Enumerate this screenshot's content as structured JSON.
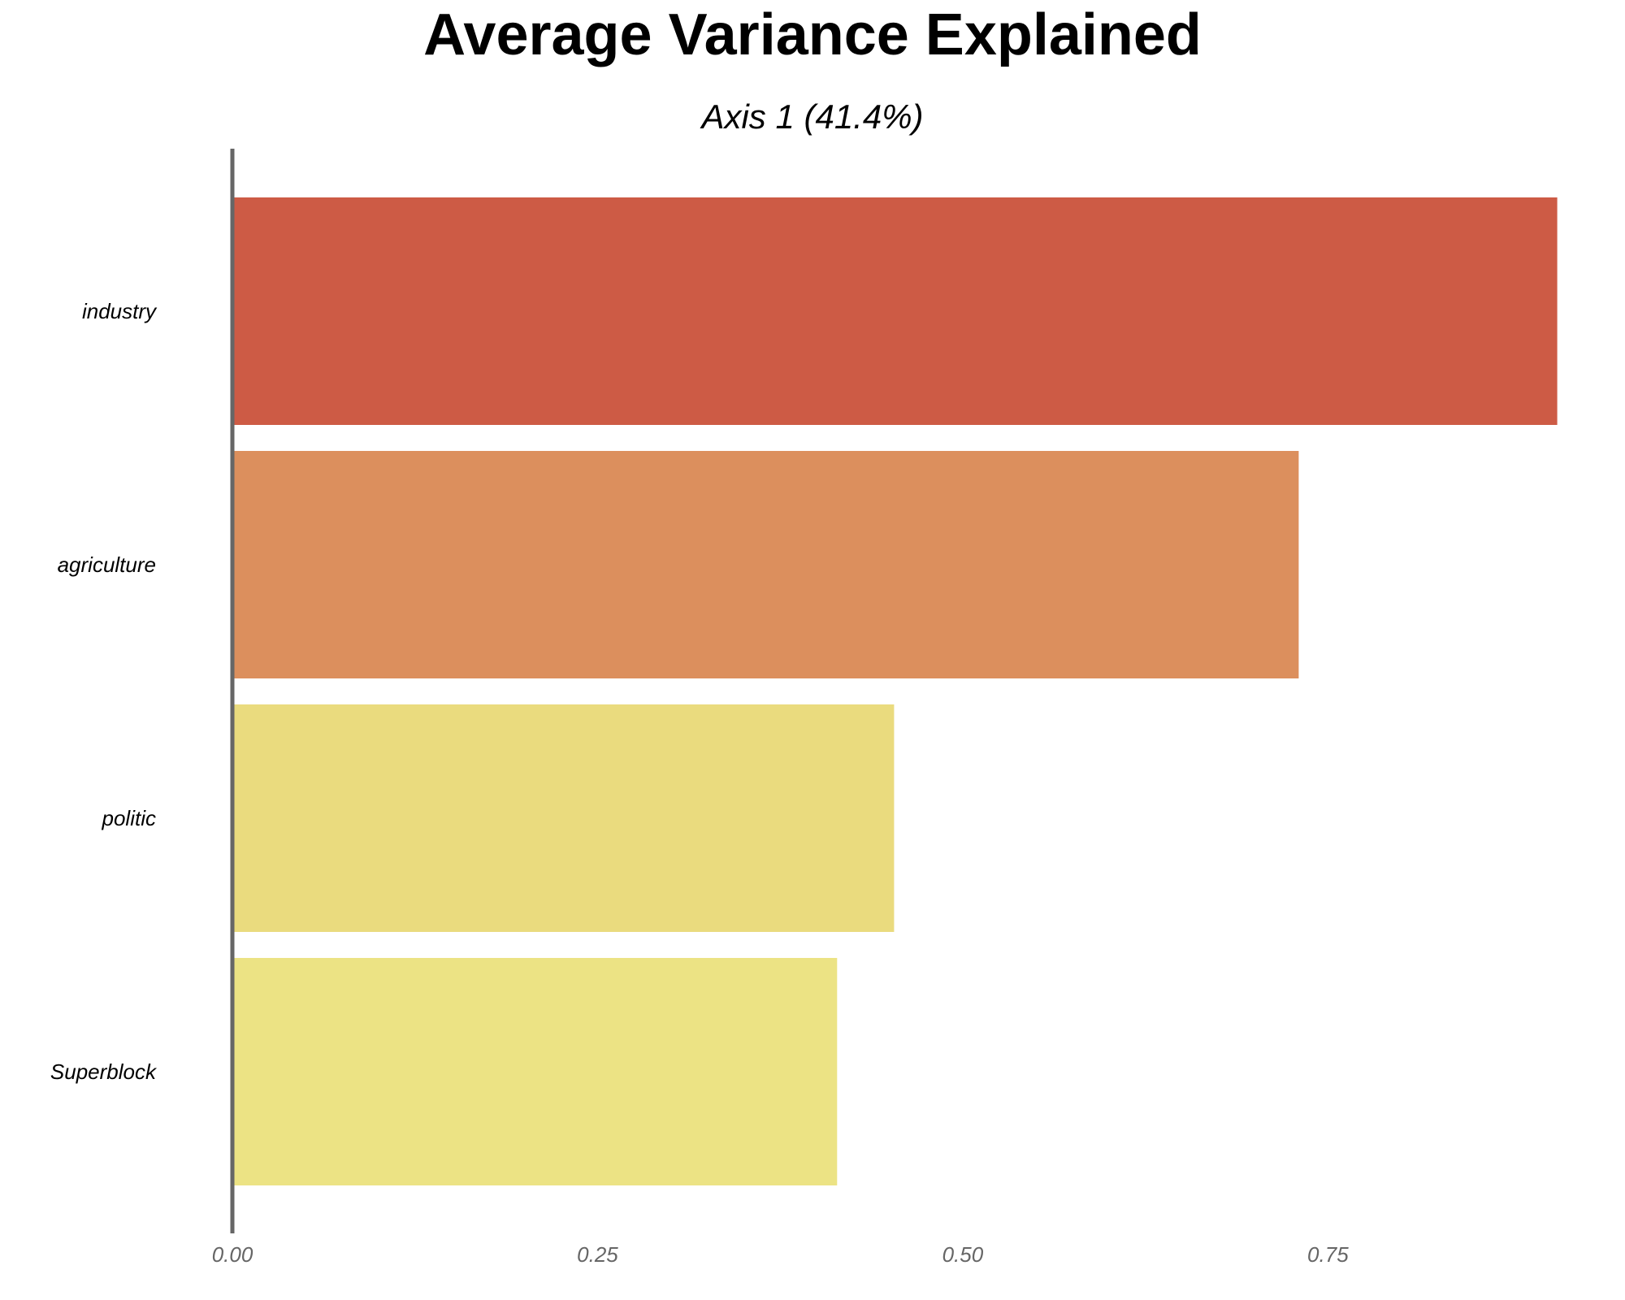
{
  "chart_data": {
    "type": "bar",
    "orientation": "horizontal",
    "title": "Average Variance Explained",
    "subtitle": "Axis 1 (41.4%)",
    "categories": [
      "industry",
      "agriculture",
      "politic",
      "Superblock"
    ],
    "values": [
      0.907,
      0.73,
      0.453,
      0.414
    ],
    "colors": [
      "#CD5B45",
      "#DC8F5D",
      "#EADB7E",
      "#ECE384"
    ],
    "xlim": [
      0,
      0.91
    ],
    "xticks": [
      "0.00",
      "0.25",
      "0.50",
      "0.75"
    ],
    "xtick_values": [
      0,
      0.25,
      0.5,
      0.75
    ],
    "xlabel": "",
    "ylabel": "",
    "grid": false,
    "legend": "none"
  }
}
